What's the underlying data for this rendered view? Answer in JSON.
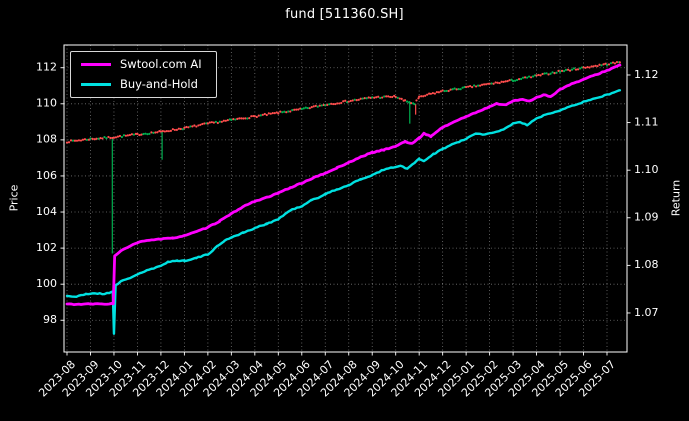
{
  "colors": {
    "background": "#000000",
    "text": "#ffffff",
    "grid": "#9a9a9a",
    "red": "#ff4d4d",
    "green": "#00b050",
    "spine": "#ffffff"
  },
  "chart_data": {
    "type": "line",
    "title": "fund [511360.SH]",
    "xlabel": "",
    "ylabel_left": "Price",
    "ylabel_right": "Return",
    "grid": true,
    "legend_position": "upper-left",
    "x_ticklabels": [
      "2023-08",
      "2023-09",
      "2023-10",
      "2023-11",
      "2023-12",
      "2024-01",
      "2024-02",
      "2024-03",
      "2024-04",
      "2024-05",
      "2024-06",
      "2024-07",
      "2024-08",
      "2024-09",
      "2024-10",
      "2024-11",
      "2024-12",
      "2025-01",
      "2025-02",
      "2025-03",
      "2025-04",
      "2025-05",
      "2025-06",
      "2025-07"
    ],
    "left_axis": {
      "ticks": [
        98,
        100,
        102,
        104,
        106,
        108,
        110,
        112
      ],
      "lim": [
        96.24,
        113.26
      ]
    },
    "right_axis": {
      "ticks": [
        "1.07",
        "1.08",
        "1.09",
        "1.10",
        "1.11",
        "1.12"
      ],
      "tick_values": [
        1.07,
        1.08,
        1.09,
        1.1,
        1.11,
        1.12
      ],
      "lim": [
        1.0618,
        1.1263
      ]
    },
    "series": [
      {
        "name": "Swtool.com AI",
        "color": "#ff00ff",
        "axis": "left",
        "style": "line",
        "points": [
          [
            0,
            98.9
          ],
          [
            0.5,
            98.88
          ],
          [
            1,
            98.9
          ],
          [
            1.5,
            98.9
          ],
          [
            1.97,
            98.92
          ],
          [
            2.03,
            101.55
          ],
          [
            2.3,
            101.85
          ],
          [
            2.6,
            102.05
          ],
          [
            3,
            102.3
          ],
          [
            3.5,
            102.45
          ],
          [
            4,
            102.5
          ],
          [
            4.5,
            102.55
          ],
          [
            5,
            102.7
          ],
          [
            5.5,
            102.9
          ],
          [
            6,
            103.15
          ],
          [
            6.5,
            103.5
          ],
          [
            7,
            103.9
          ],
          [
            7.5,
            104.3
          ],
          [
            8,
            104.6
          ],
          [
            8.5,
            104.8
          ],
          [
            9,
            105.05
          ],
          [
            9.5,
            105.35
          ],
          [
            10,
            105.6
          ],
          [
            10.5,
            105.9
          ],
          [
            11,
            106.15
          ],
          [
            11.5,
            106.45
          ],
          [
            12,
            106.75
          ],
          [
            12.5,
            107.05
          ],
          [
            13,
            107.3
          ],
          [
            13.5,
            107.45
          ],
          [
            14,
            107.65
          ],
          [
            14.4,
            107.9
          ],
          [
            14.7,
            107.8
          ],
          [
            15,
            108.1
          ],
          [
            15.2,
            108.35
          ],
          [
            15.5,
            108.2
          ],
          [
            16,
            108.7
          ],
          [
            16.5,
            109.0
          ],
          [
            17,
            109.3
          ],
          [
            17.5,
            109.55
          ],
          [
            18,
            109.85
          ],
          [
            18.3,
            110.0
          ],
          [
            18.7,
            109.95
          ],
          [
            19,
            110.15
          ],
          [
            19.4,
            110.25
          ],
          [
            19.7,
            110.15
          ],
          [
            20,
            110.35
          ],
          [
            20.3,
            110.5
          ],
          [
            20.6,
            110.4
          ],
          [
            21,
            110.8
          ],
          [
            21.5,
            111.1
          ],
          [
            22,
            111.35
          ],
          [
            22.5,
            111.6
          ],
          [
            23,
            111.85
          ],
          [
            23.55,
            112.15
          ]
        ]
      },
      {
        "name": "Buy-and-Hold",
        "color": "#00e1e1",
        "axis": "left",
        "style": "line",
        "points": [
          [
            0,
            99.35
          ],
          [
            0.4,
            99.3
          ],
          [
            0.8,
            99.45
          ],
          [
            1.2,
            99.5
          ],
          [
            1.6,
            99.45
          ],
          [
            1.95,
            99.6
          ],
          [
            2.0,
            97.25
          ],
          [
            2.07,
            99.95
          ],
          [
            2.3,
            100.15
          ],
          [
            2.6,
            100.3
          ],
          [
            3,
            100.55
          ],
          [
            3.5,
            100.8
          ],
          [
            4,
            101.0
          ],
          [
            4.3,
            101.25
          ],
          [
            4.7,
            101.3
          ],
          [
            5,
            101.3
          ],
          [
            5.5,
            101.45
          ],
          [
            6,
            101.65
          ],
          [
            6.4,
            102.1
          ],
          [
            6.7,
            102.4
          ],
          [
            7,
            102.6
          ],
          [
            7.5,
            102.85
          ],
          [
            8,
            103.1
          ],
          [
            8.5,
            103.35
          ],
          [
            9,
            103.6
          ],
          [
            9.4,
            104.0
          ],
          [
            9.7,
            104.2
          ],
          [
            10,
            104.3
          ],
          [
            10.4,
            104.65
          ],
          [
            10.7,
            104.8
          ],
          [
            11,
            105.0
          ],
          [
            11.5,
            105.25
          ],
          [
            12,
            105.5
          ],
          [
            12.5,
            105.8
          ],
          [
            13,
            106.05
          ],
          [
            13.4,
            106.3
          ],
          [
            13.8,
            106.45
          ],
          [
            14.2,
            106.55
          ],
          [
            14.5,
            106.4
          ],
          [
            15,
            106.95
          ],
          [
            15.2,
            106.8
          ],
          [
            15.6,
            107.2
          ],
          [
            16,
            107.5
          ],
          [
            16.5,
            107.8
          ],
          [
            17,
            108.05
          ],
          [
            17.4,
            108.35
          ],
          [
            17.8,
            108.3
          ],
          [
            18.2,
            108.4
          ],
          [
            18.6,
            108.6
          ],
          [
            19,
            108.9
          ],
          [
            19.3,
            109.0
          ],
          [
            19.6,
            108.8
          ],
          [
            20,
            109.2
          ],
          [
            20.5,
            109.45
          ],
          [
            21,
            109.65
          ],
          [
            21.5,
            109.9
          ],
          [
            22,
            110.1
          ],
          [
            22.5,
            110.3
          ],
          [
            23,
            110.5
          ],
          [
            23.55,
            110.75
          ]
        ]
      },
      {
        "name": "fund daily (up/down dots)",
        "axis": "left",
        "style": "dots",
        "up_color": "#ff4d4d",
        "down_color": "#00b050",
        "points": [
          [
            0,
            107.9
          ],
          [
            1,
            108.05
          ],
          [
            2,
            108.15
          ],
          [
            3,
            108.3
          ],
          [
            4,
            108.45
          ],
          [
            5,
            108.65
          ],
          [
            6,
            108.9
          ],
          [
            7,
            109.1
          ],
          [
            8,
            109.3
          ],
          [
            9,
            109.5
          ],
          [
            10,
            109.7
          ],
          [
            11,
            109.95
          ],
          [
            12,
            110.15
          ],
          [
            13,
            110.35
          ],
          [
            14,
            110.4
          ],
          [
            14.4,
            110.15
          ],
          [
            14.8,
            110.0
          ],
          [
            15,
            110.35
          ],
          [
            15.5,
            110.55
          ],
          [
            16,
            110.7
          ],
          [
            17,
            110.9
          ],
          [
            18,
            111.1
          ],
          [
            19,
            111.3
          ],
          [
            20,
            111.55
          ],
          [
            21,
            111.8
          ],
          [
            22,
            112.0
          ],
          [
            23,
            112.2
          ],
          [
            23.55,
            112.3
          ]
        ]
      }
    ],
    "spikes": [
      {
        "x": 1.93,
        "from": 108.15,
        "to": 101.7,
        "color": "green"
      },
      {
        "x": 4.05,
        "from": 108.45,
        "to": 106.9,
        "color": "green"
      },
      {
        "x": 14.6,
        "from": 110.15,
        "to": 108.9,
        "color": "green"
      },
      {
        "x": 14.85,
        "from": 110.0,
        "to": 109.4,
        "color": "red"
      }
    ]
  }
}
